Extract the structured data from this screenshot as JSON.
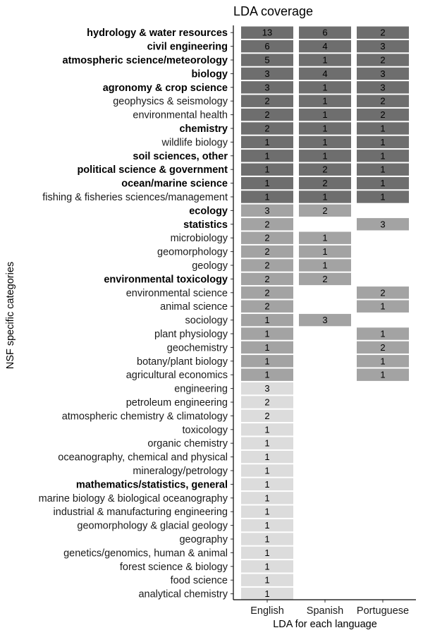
{
  "chart_data": {
    "type": "heatmap",
    "title": "LDA coverage",
    "xlabel": "LDA for each language",
    "ylabel": "NSF specific categories",
    "columns": [
      "English",
      "Spanish",
      "Portuguese"
    ],
    "group_colors": {
      "all_three": "#6e6e6e",
      "two_languages": "#a3a3a3",
      "one_language": "#dcdcdc"
    },
    "rows": [
      {
        "label": "hydrology & water resources",
        "bold": true,
        "group": "all_three",
        "values": [
          13,
          6,
          2
        ]
      },
      {
        "label": "civil engineering",
        "bold": true,
        "group": "all_three",
        "values": [
          6,
          4,
          3
        ]
      },
      {
        "label": "atmospheric science/meteorology",
        "bold": true,
        "group": "all_three",
        "values": [
          5,
          1,
          2
        ]
      },
      {
        "label": "biology",
        "bold": true,
        "group": "all_three",
        "values": [
          3,
          4,
          3
        ]
      },
      {
        "label": "agronomy & crop science",
        "bold": true,
        "group": "all_three",
        "values": [
          3,
          1,
          3
        ]
      },
      {
        "label": "geophysics & seismology",
        "bold": false,
        "group": "all_three",
        "values": [
          2,
          1,
          2
        ]
      },
      {
        "label": "environmental health",
        "bold": false,
        "group": "all_three",
        "values": [
          2,
          1,
          2
        ]
      },
      {
        "label": "chemistry",
        "bold": true,
        "group": "all_three",
        "values": [
          2,
          1,
          1
        ]
      },
      {
        "label": "wildlife biology",
        "bold": false,
        "group": "all_three",
        "values": [
          1,
          1,
          1
        ]
      },
      {
        "label": "soil sciences, other",
        "bold": true,
        "group": "all_three",
        "values": [
          1,
          1,
          1
        ]
      },
      {
        "label": "political science & government",
        "bold": true,
        "group": "all_three",
        "values": [
          1,
          2,
          1
        ]
      },
      {
        "label": "ocean/marine science",
        "bold": true,
        "group": "all_three",
        "values": [
          1,
          2,
          1
        ]
      },
      {
        "label": "fishing & fisheries sciences/management",
        "bold": false,
        "group": "all_three",
        "values": [
          1,
          1,
          1
        ]
      },
      {
        "label": "ecology",
        "bold": true,
        "group": "two_languages",
        "values": [
          3,
          2,
          null
        ]
      },
      {
        "label": "statistics",
        "bold": true,
        "group": "two_languages",
        "values": [
          2,
          null,
          3
        ]
      },
      {
        "label": "microbiology",
        "bold": false,
        "group": "two_languages",
        "values": [
          2,
          1,
          null
        ]
      },
      {
        "label": "geomorphology",
        "bold": false,
        "group": "two_languages",
        "values": [
          2,
          1,
          null
        ]
      },
      {
        "label": "geology",
        "bold": false,
        "group": "two_languages",
        "values": [
          2,
          1,
          null
        ]
      },
      {
        "label": "environmental toxicology",
        "bold": true,
        "group": "two_languages",
        "values": [
          2,
          2,
          null
        ]
      },
      {
        "label": "environmental science",
        "bold": false,
        "group": "two_languages",
        "values": [
          2,
          null,
          2
        ]
      },
      {
        "label": "animal science",
        "bold": false,
        "group": "two_languages",
        "values": [
          2,
          null,
          1
        ]
      },
      {
        "label": "sociology",
        "bold": false,
        "group": "two_languages",
        "values": [
          1,
          3,
          null
        ]
      },
      {
        "label": "plant physiology",
        "bold": false,
        "group": "two_languages",
        "values": [
          1,
          null,
          1
        ]
      },
      {
        "label": "geochemistry",
        "bold": false,
        "group": "two_languages",
        "values": [
          1,
          null,
          2
        ]
      },
      {
        "label": "botany/plant biology",
        "bold": false,
        "group": "two_languages",
        "values": [
          1,
          null,
          1
        ]
      },
      {
        "label": "agricultural economics",
        "bold": false,
        "group": "two_languages",
        "values": [
          1,
          null,
          1
        ]
      },
      {
        "label": "engineering",
        "bold": false,
        "group": "one_language",
        "values": [
          3,
          null,
          null
        ]
      },
      {
        "label": "petroleum engineering",
        "bold": false,
        "group": "one_language",
        "values": [
          2,
          null,
          null
        ]
      },
      {
        "label": "atmospheric chemistry & climatology",
        "bold": false,
        "group": "one_language",
        "values": [
          2,
          null,
          null
        ]
      },
      {
        "label": "toxicology",
        "bold": false,
        "group": "one_language",
        "values": [
          1,
          null,
          null
        ]
      },
      {
        "label": "organic chemistry",
        "bold": false,
        "group": "one_language",
        "values": [
          1,
          null,
          null
        ]
      },
      {
        "label": "oceanography, chemical and physical",
        "bold": false,
        "group": "one_language",
        "values": [
          1,
          null,
          null
        ]
      },
      {
        "label": "mineralogy/petrology",
        "bold": false,
        "group": "one_language",
        "values": [
          1,
          null,
          null
        ]
      },
      {
        "label": "mathematics/statistics, general",
        "bold": true,
        "group": "one_language",
        "values": [
          1,
          null,
          null
        ]
      },
      {
        "label": "marine biology & biological oceanography",
        "bold": false,
        "group": "one_language",
        "values": [
          1,
          null,
          null
        ]
      },
      {
        "label": "industrial & manufacturing engineering",
        "bold": false,
        "group": "one_language",
        "values": [
          1,
          null,
          null
        ]
      },
      {
        "label": "geomorphology & glacial geology",
        "bold": false,
        "group": "one_language",
        "values": [
          1,
          null,
          null
        ]
      },
      {
        "label": "geography",
        "bold": false,
        "group": "one_language",
        "values": [
          1,
          null,
          null
        ]
      },
      {
        "label": "genetics/genomics, human & animal",
        "bold": false,
        "group": "one_language",
        "values": [
          1,
          null,
          null
        ]
      },
      {
        "label": "forest science & biology",
        "bold": false,
        "group": "one_language",
        "values": [
          1,
          null,
          null
        ]
      },
      {
        "label": "food science",
        "bold": false,
        "group": "one_language",
        "values": [
          1,
          null,
          null
        ]
      },
      {
        "label": "analytical chemistry",
        "bold": false,
        "group": "one_language",
        "values": [
          1,
          null,
          null
        ]
      }
    ]
  }
}
